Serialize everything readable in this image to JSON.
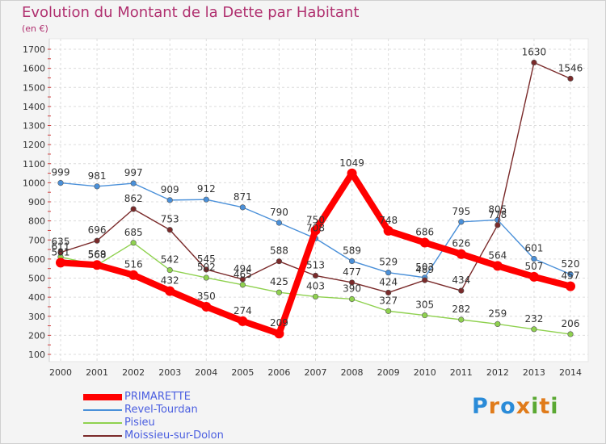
{
  "chart_data": {
    "type": "line",
    "title": "Evolution du Montant de la Dette par Habitant",
    "subtitle": "(en €)",
    "categories": [
      "2000",
      "2001",
      "2002",
      "2003",
      "2004",
      "2005",
      "2006",
      "2007",
      "2008",
      "2009",
      "2010",
      "2011",
      "2012",
      "2013",
      "2014"
    ],
    "y_ticks": [
      100,
      200,
      300,
      400,
      500,
      600,
      700,
      800,
      900,
      1000,
      1100,
      1200,
      1300,
      1400,
      1500,
      1600,
      1700
    ],
    "ylim": [
      100,
      1700
    ],
    "grid": true,
    "legend_position": "bottom-left",
    "series": [
      {
        "name": "PRIMARETTE",
        "color": "#ff0000",
        "values": [
          581,
          569,
          516,
          432,
          350,
          274,
          209,
          750,
          1049,
          748,
          686,
          626,
          564,
          507,
          457
        ]
      },
      {
        "name": "Revel-Tourdan",
        "color": "#4a90d9",
        "values": [
          999,
          981,
          997,
          909,
          912,
          871,
          790,
          708,
          589,
          529,
          503,
          795,
          805,
          601,
          520
        ]
      },
      {
        "name": "Pisieu",
        "color": "#8fd14f",
        "values": [
          611,
          568,
          685,
          542,
          502,
          465,
          425,
          403,
          390,
          327,
          305,
          282,
          259,
          232,
          206
        ]
      },
      {
        "name": "Moissieu-sur-Dolon",
        "color": "#7a2a2a",
        "values": [
          635,
          696,
          862,
          753,
          545,
          494,
          588,
          513,
          477,
          424,
          489,
          434,
          778,
          1630,
          1546
        ]
      }
    ]
  },
  "logo_text": "Proxiti"
}
